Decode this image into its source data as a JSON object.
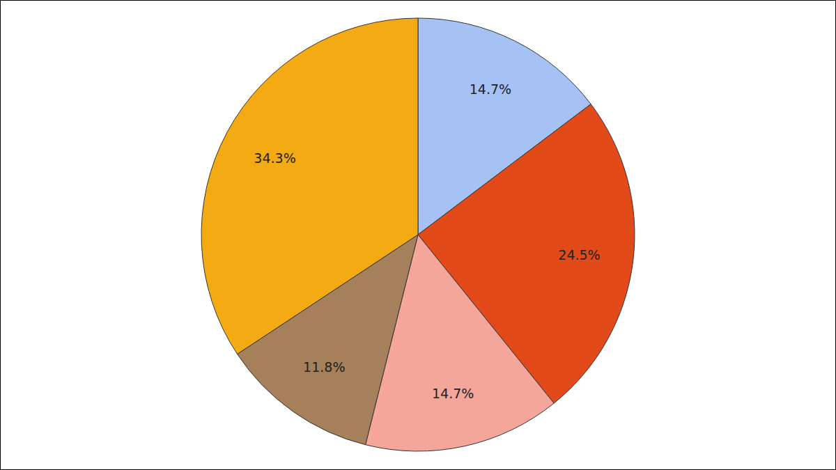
{
  "chart_data": {
    "type": "pie",
    "values": [
      14.7,
      24.5,
      14.7,
      11.8,
      34.3
    ],
    "value_labels": [
      "14.7%",
      "24.5%",
      "14.7%",
      "11.8%",
      "34.3%"
    ],
    "colors": [
      "#a6c2f4",
      "#e34a1a",
      "#f4a69a",
      "#a6805a",
      "#f4aa12"
    ],
    "data_labels": true
  }
}
